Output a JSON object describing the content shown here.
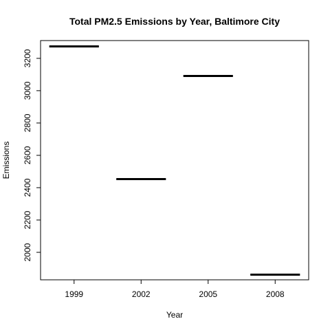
{
  "chart_data": {
    "type": "bar",
    "title": "Total PM2.5 Emissions by Year, Baltimore City",
    "xlabel": "Year",
    "ylabel": "Emissions",
    "categories": [
      "1999",
      "2002",
      "2005",
      "2008"
    ],
    "values": [
      3274,
      2453,
      3091,
      1862
    ],
    "ylim": [
      1830,
      3310
    ],
    "yticks": [
      2000,
      2200,
      2400,
      2600,
      2800,
      3000,
      3200
    ],
    "grid": false,
    "legend": "none",
    "mark_style": "horizontal segment per category (R plot of factor x)",
    "color": "#000000"
  }
}
